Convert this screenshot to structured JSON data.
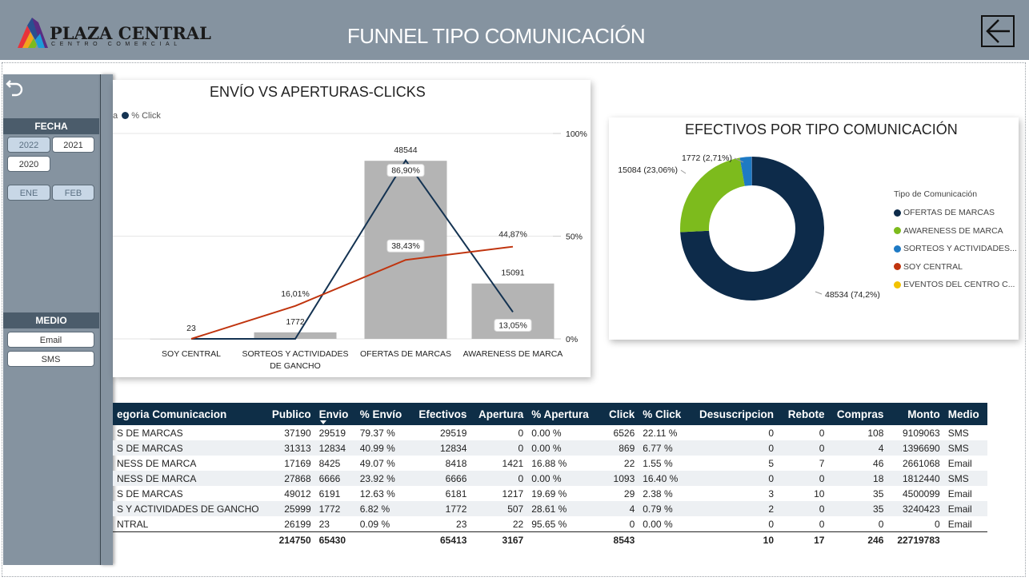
{
  "header": {
    "logo_name": "PLAZA CENTRAL",
    "logo_sub": "CENTRO COMERCIAL",
    "title": "FUNNEL TIPO COMUNICACIÓN",
    "back_icon": "arrow-left-icon"
  },
  "sidebar": {
    "undo_icon": "undo-icon",
    "fecha_label": "FECHA",
    "years": [
      "2022",
      "2021",
      "2020"
    ],
    "months": [
      "ENE",
      "FEB"
    ],
    "medio_label": "MEDIO",
    "medios": [
      "Email",
      "SMS"
    ]
  },
  "chart1": {
    "title": "ENVÍO VS APERTURAS-CLICKS",
    "legend_partial": "a",
    "legend_click": "% Click",
    "colors": {
      "bars": "#b4b4b4",
      "apertura_line": "#c0340e",
      "click_line": "#143352"
    },
    "right_axis": [
      "100%",
      "50%",
      "0%"
    ]
  },
  "chart_data": [
    {
      "type": "bar",
      "title": "ENVÍO VS APERTURAS-CLICKS",
      "categories": [
        "SOY CENTRAL",
        "SORTEOS Y ACTIVIDADES DE GANCHO",
        "OFERTAS DE MARCAS",
        "AWARENESS DE MARCA"
      ],
      "category_label_lines": [
        [
          "SOY CENTRAL"
        ],
        [
          "SORTEOS Y ACTIVIDADES",
          "DE GANCHO"
        ],
        [
          "OFERTAS DE MARCAS"
        ],
        [
          "AWARENESS DE MARCA"
        ]
      ],
      "bar_values": [
        23,
        1772,
        48544,
        15091
      ],
      "bar_labels": [
        "23",
        "1772",
        "48544",
        "15091"
      ],
      "bar_ylim": [
        0,
        56000
      ],
      "series": [
        {
          "name": "% Click",
          "values": [
            0,
            0,
            86.9,
            13.05
          ],
          "labels": [
            "",
            "",
            "86,90%",
            "13,05%"
          ]
        },
        {
          "name": "",
          "values": [
            0,
            16.01,
            38.43,
            44.87
          ],
          "labels": [
            "",
            "16,01%",
            "38,43%",
            "44,87%"
          ]
        }
      ],
      "y2lim": [
        0,
        100
      ],
      "y2ticks": [
        "100%",
        "50%",
        "0%"
      ]
    },
    {
      "type": "pie",
      "title": "EFECTIVOS POR TIPO COMUNICACIÓN",
      "legend_title": "Tipo de Comunicación",
      "slices": [
        {
          "name": "OFERTAS DE MARCAS",
          "value": 48534,
          "label": "48534 (74,2%)",
          "color": "#0d2b4a"
        },
        {
          "name": "AWARENESS DE MARCA",
          "value": 15084,
          "label": "15084 (23,06%)",
          "color": "#7dbb1d"
        },
        {
          "name": "SORTEOS Y ACTIVIDADES...",
          "value": 1772,
          "label": "1772 (2,71%)",
          "color": "#1e7ac4"
        },
        {
          "name": "SOY CENTRAL",
          "value": 23,
          "label": "",
          "color": "#c0340e"
        },
        {
          "name": "EVENTOS DEL CENTRO C...",
          "value": 0,
          "label": "",
          "color": "#f2c200"
        }
      ]
    }
  ],
  "table": {
    "columns": [
      "egoria Comunicacion",
      "Publico",
      "Envio",
      "% Envío",
      "Efectivos",
      "Apertura",
      "% Apertura",
      "Click",
      "% Click",
      "Desuscripcion",
      "Rebote",
      "Compras",
      "Monto",
      "Medio"
    ],
    "rows": [
      [
        "S DE MARCAS",
        "37190",
        "29519",
        "79.37 %",
        "29519",
        "0",
        "0.00 %",
        "6526",
        "22.11 %",
        "0",
        "0",
        "108",
        "9109063",
        "SMS"
      ],
      [
        "S DE MARCAS",
        "31313",
        "12834",
        "40.99 %",
        "12834",
        "0",
        "0.00 %",
        "869",
        "6.77 %",
        "0",
        "0",
        "4",
        "1396690",
        "SMS"
      ],
      [
        "NESS DE MARCA",
        "17169",
        "8425",
        "49.07 %",
        "8418",
        "1421",
        "16.88 %",
        "22",
        "1.55 %",
        "5",
        "7",
        "46",
        "2661068",
        "Email"
      ],
      [
        "NESS DE MARCA",
        "27868",
        "6666",
        "23.92 %",
        "6666",
        "0",
        "0.00 %",
        "1093",
        "16.40 %",
        "0",
        "0",
        "18",
        "1812440",
        "SMS"
      ],
      [
        "S DE MARCAS",
        "49012",
        "6191",
        "12.63 %",
        "6181",
        "1217",
        "19.69 %",
        "29",
        "2.38 %",
        "3",
        "10",
        "35",
        "4500099",
        "Email"
      ],
      [
        "S Y ACTIVIDADES DE GANCHO",
        "25999",
        "1772",
        "6.82 %",
        "1772",
        "507",
        "28.61 %",
        "4",
        "0.79 %",
        "2",
        "0",
        "35",
        "3240423",
        "Email"
      ],
      [
        "NTRAL",
        "26199",
        "23",
        "0.09 %",
        "23",
        "22",
        "95.65 %",
        "0",
        "0.00 %",
        "0",
        "0",
        "0",
        "0",
        "Email"
      ]
    ],
    "totals": [
      "",
      "214750",
      "65430",
      "",
      "65413",
      "3167",
      "",
      "8543",
      "",
      "10",
      "17",
      "246",
      "22719783",
      ""
    ]
  }
}
